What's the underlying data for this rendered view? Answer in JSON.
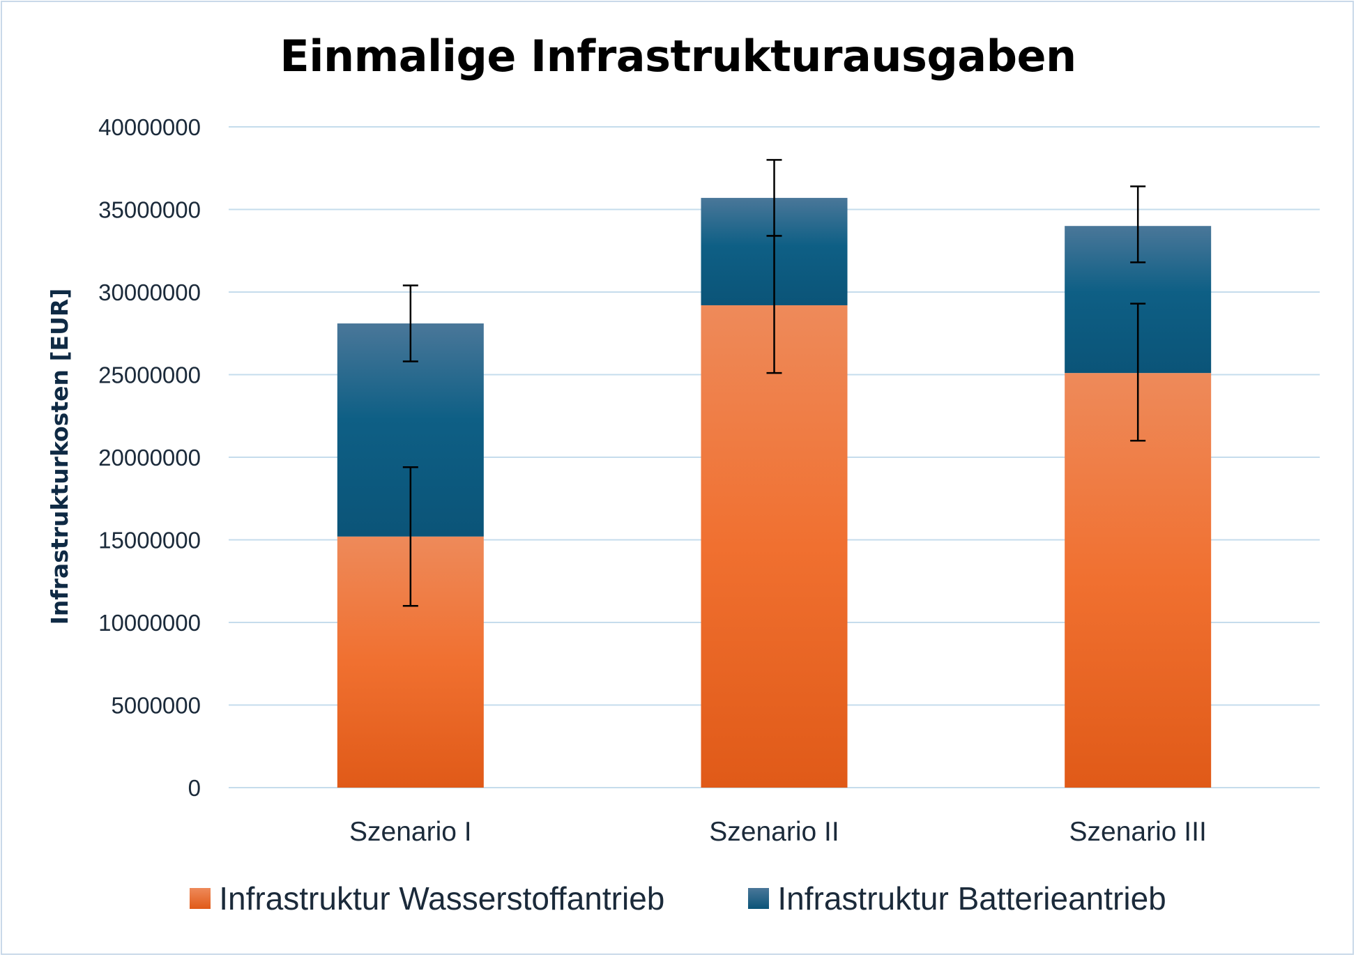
{
  "chart_data": {
    "type": "bar",
    "stacked": true,
    "title": "Einmalige Infrastrukturausgaben",
    "xlabel": "",
    "ylabel": "Infrastrukturkosten [EUR]",
    "ylim": [
      0,
      40000000
    ],
    "yticks": [
      "0",
      "5000000",
      "10000000",
      "15000000",
      "20000000",
      "25000000",
      "30000000",
      "35000000",
      "40000000"
    ],
    "categories": [
      "Szenario I",
      "Szenario II",
      "Szenario III"
    ],
    "grid": "horizontal",
    "legend": "bottom",
    "series": [
      {
        "name": "Infrastruktur Wasserstoffantrieb",
        "color": "#e8621a",
        "values": [
          15200000,
          29200000,
          25100000
        ],
        "error_low": [
          11000000,
          25100000,
          21000000
        ],
        "error_high": [
          19400000,
          33400000,
          29300000
        ]
      },
      {
        "name": "Infrastruktur Batterieantrieb",
        "color": "#0e5a80",
        "values": [
          12900000,
          6500000,
          8900000
        ],
        "error_low": [
          25800000,
          33400000,
          31800000
        ],
        "error_high": [
          30400000,
          38000000,
          36400000
        ]
      }
    ]
  }
}
